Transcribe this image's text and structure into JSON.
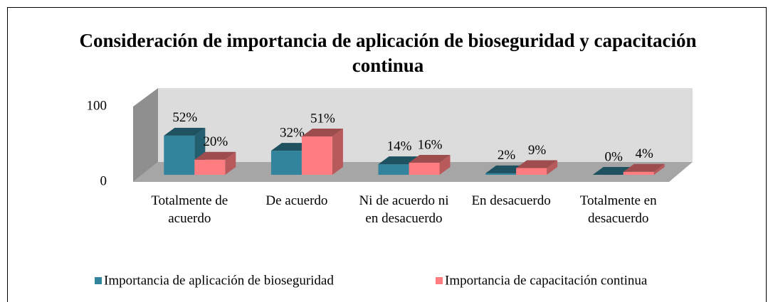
{
  "chart_data": {
    "type": "bar3d",
    "title": "Consideración de importancia de aplicación de bioseguridad y capacitación continua",
    "categories": [
      "Totalmente de acuerdo",
      "De acuerdo",
      "Ni de acuerdo ni en desacuerdo",
      "En desacuerdo",
      "Totalmente en desacuerdo"
    ],
    "series": [
      {
        "name": "Importancia de aplicación de bioseguridad",
        "color": "#31849b",
        "values": [
          52,
          32,
          14,
          2,
          0
        ],
        "value_labels": [
          "52%",
          "32%",
          "14%",
          "2%",
          "0%"
        ]
      },
      {
        "name": "Importancia de capacitación continua",
        "color": "#ff7c80",
        "values": [
          20,
          51,
          16,
          9,
          4
        ],
        "value_labels": [
          "20%",
          "51%",
          "16%",
          "9%",
          "4%"
        ]
      }
    ],
    "ylim": [
      0,
      100
    ],
    "yticks": [
      0,
      100
    ],
    "legend": "bottom"
  }
}
